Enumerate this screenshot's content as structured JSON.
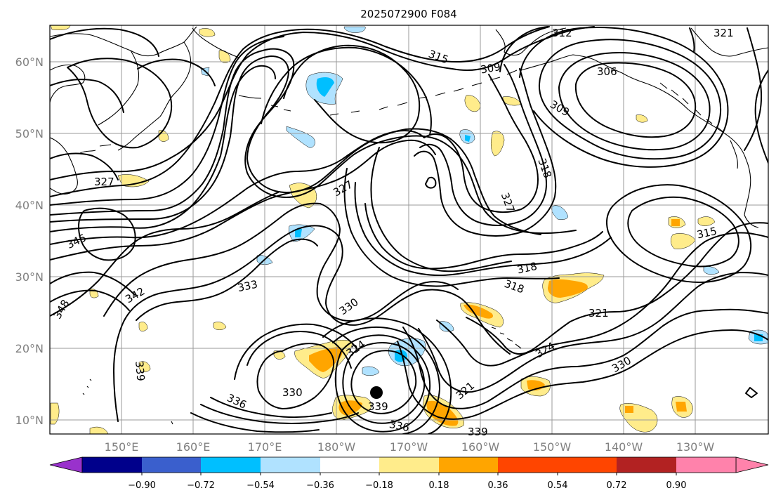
{
  "title": "2025072900 F084",
  "lat_labels": [
    "60°N",
    "50°N",
    "40°N",
    "30°N",
    "20°N",
    "10°N"
  ],
  "lon_labels": [
    "150°E",
    "160°E",
    "170°E",
    "180°W",
    "170°W",
    "160°W",
    "150°W",
    "140°W",
    "130°W"
  ],
  "colorbar": {
    "labels": [
      "−0.90",
      "−0.72",
      "−0.54",
      "−0.36",
      "−0.18",
      "0.18",
      "0.36",
      "0.54",
      "0.72",
      "0.90"
    ],
    "colors": [
      "#9932cc",
      "#00008b",
      "#3a5fcd",
      "#00bfff",
      "#b0e2ff",
      "#ffffff",
      "#ffec8b",
      "#ffa500",
      "#ff4500",
      "#b22222",
      "#ff82ab"
    ]
  },
  "contour_labels": [
    "312",
    "321",
    "315",
    "309",
    "306",
    "309",
    "318",
    "327",
    "327",
    "327",
    "345",
    "342",
    "348",
    "333",
    "330",
    "318",
    "318",
    "321",
    "315",
    "324",
    "324",
    "321",
    "330",
    "330",
    "336",
    "339",
    "339",
    "336",
    "339"
  ],
  "colors": {
    "contour": "#000000",
    "grid": "#9a9a9a",
    "axis_text": "#808080",
    "positive_light": "#ffec8b",
    "positive_mid": "#ffa500",
    "negative_light": "#b0e2ff",
    "negative_mid": "#00bfff"
  }
}
